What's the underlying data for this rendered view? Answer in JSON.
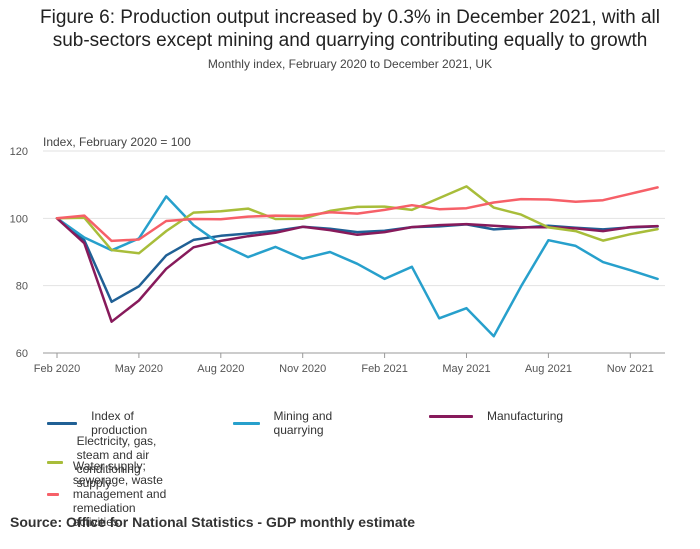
{
  "title_line1": "Figure 6: Production output increased by 0.3% in December 2021, with all",
  "title_line2": "sub-sectors except mining and quarrying contributing equally to growth",
  "subtitle": "Monthly index, February 2020 to December 2021, UK",
  "source": "Source: Office for National Statistics - GDP monthly estimate",
  "chart_data": {
    "type": "line",
    "ylabel": "Index, February 2020 = 100",
    "ylim": [
      60,
      120
    ],
    "yticks": [
      60,
      80,
      100,
      120
    ],
    "x": [
      "Feb 2020",
      "Mar 2020",
      "Apr 2020",
      "May 2020",
      "Jun 2020",
      "Jul 2020",
      "Aug 2020",
      "Sep 2020",
      "Oct 2020",
      "Nov 2020",
      "Dec 2020",
      "Jan 2021",
      "Feb 2021",
      "Mar 2021",
      "Apr 2021",
      "May 2021",
      "Jun 2021",
      "Jul 2021",
      "Aug 2021",
      "Sep 2021",
      "Oct 2021",
      "Nov 2021",
      "Dec 2021"
    ],
    "xticks": [
      {
        "index": 0,
        "label": "Feb 2020"
      },
      {
        "index": 3,
        "label": "May 2020"
      },
      {
        "index": 6,
        "label": "Aug 2020"
      },
      {
        "index": 9,
        "label": "Nov 2020"
      },
      {
        "index": 12,
        "label": "Feb 2021"
      },
      {
        "index": 15,
        "label": "May 2021"
      },
      {
        "index": 18,
        "label": "Aug 2021"
      },
      {
        "index": 21,
        "label": "Nov 2021"
      }
    ],
    "series": [
      {
        "name": "Index of production",
        "color": "#206095",
        "values": [
          100,
          93.5,
          75.2,
          79.8,
          89,
          93.6,
          94.8,
          95.5,
          96.3,
          97.5,
          96.9,
          95.9,
          96.3,
          97.4,
          97.6,
          98.2,
          96.7,
          97.2,
          97.8,
          97.2,
          96.7,
          97.3,
          97.6
        ]
      },
      {
        "name": "Mining and quarrying",
        "color": "#27a0cc",
        "values": [
          100,
          94.3,
          90.5,
          94,
          106.5,
          98,
          92.3,
          88.5,
          91.5,
          88,
          90,
          86.5,
          82,
          85.6,
          70.3,
          73.3,
          65,
          79.8,
          93.5,
          91.8,
          87,
          84.6,
          82
        ]
      },
      {
        "name": "Manufacturing",
        "color": "#871a5b",
        "values": [
          100,
          92.6,
          69.3,
          75.6,
          85,
          91.4,
          93.3,
          94.7,
          95.7,
          97.5,
          96.5,
          95.1,
          95.9,
          97.4,
          98,
          98.3,
          97.8,
          97.3,
          97.4,
          97,
          96.2,
          97.4,
          97.7
        ]
      },
      {
        "name": "Electricity, gas, steam and air conditioning supply",
        "color": "#a8bd3a",
        "values": [
          100,
          100.2,
          90.6,
          89.6,
          96.2,
          101.7,
          102.1,
          102.9,
          99.8,
          99.9,
          102.2,
          103.4,
          103.5,
          102.5,
          106,
          109.5,
          103.2,
          101.1,
          97.3,
          96.2,
          93.4,
          95.3,
          96.8
        ]
      },
      {
        "name": "Water supply; sewerage, waste management and remediation activities",
        "color": "#f66068",
        "values": [
          100,
          100.8,
          93.3,
          93.7,
          99.2,
          99.8,
          99.7,
          100.5,
          100.8,
          100.7,
          101.8,
          101.4,
          102.5,
          103.9,
          102.7,
          103,
          104.7,
          105.7,
          105.6,
          104.9,
          105.4,
          107.3,
          109.2
        ]
      }
    ],
    "legend_position": "bottom"
  }
}
